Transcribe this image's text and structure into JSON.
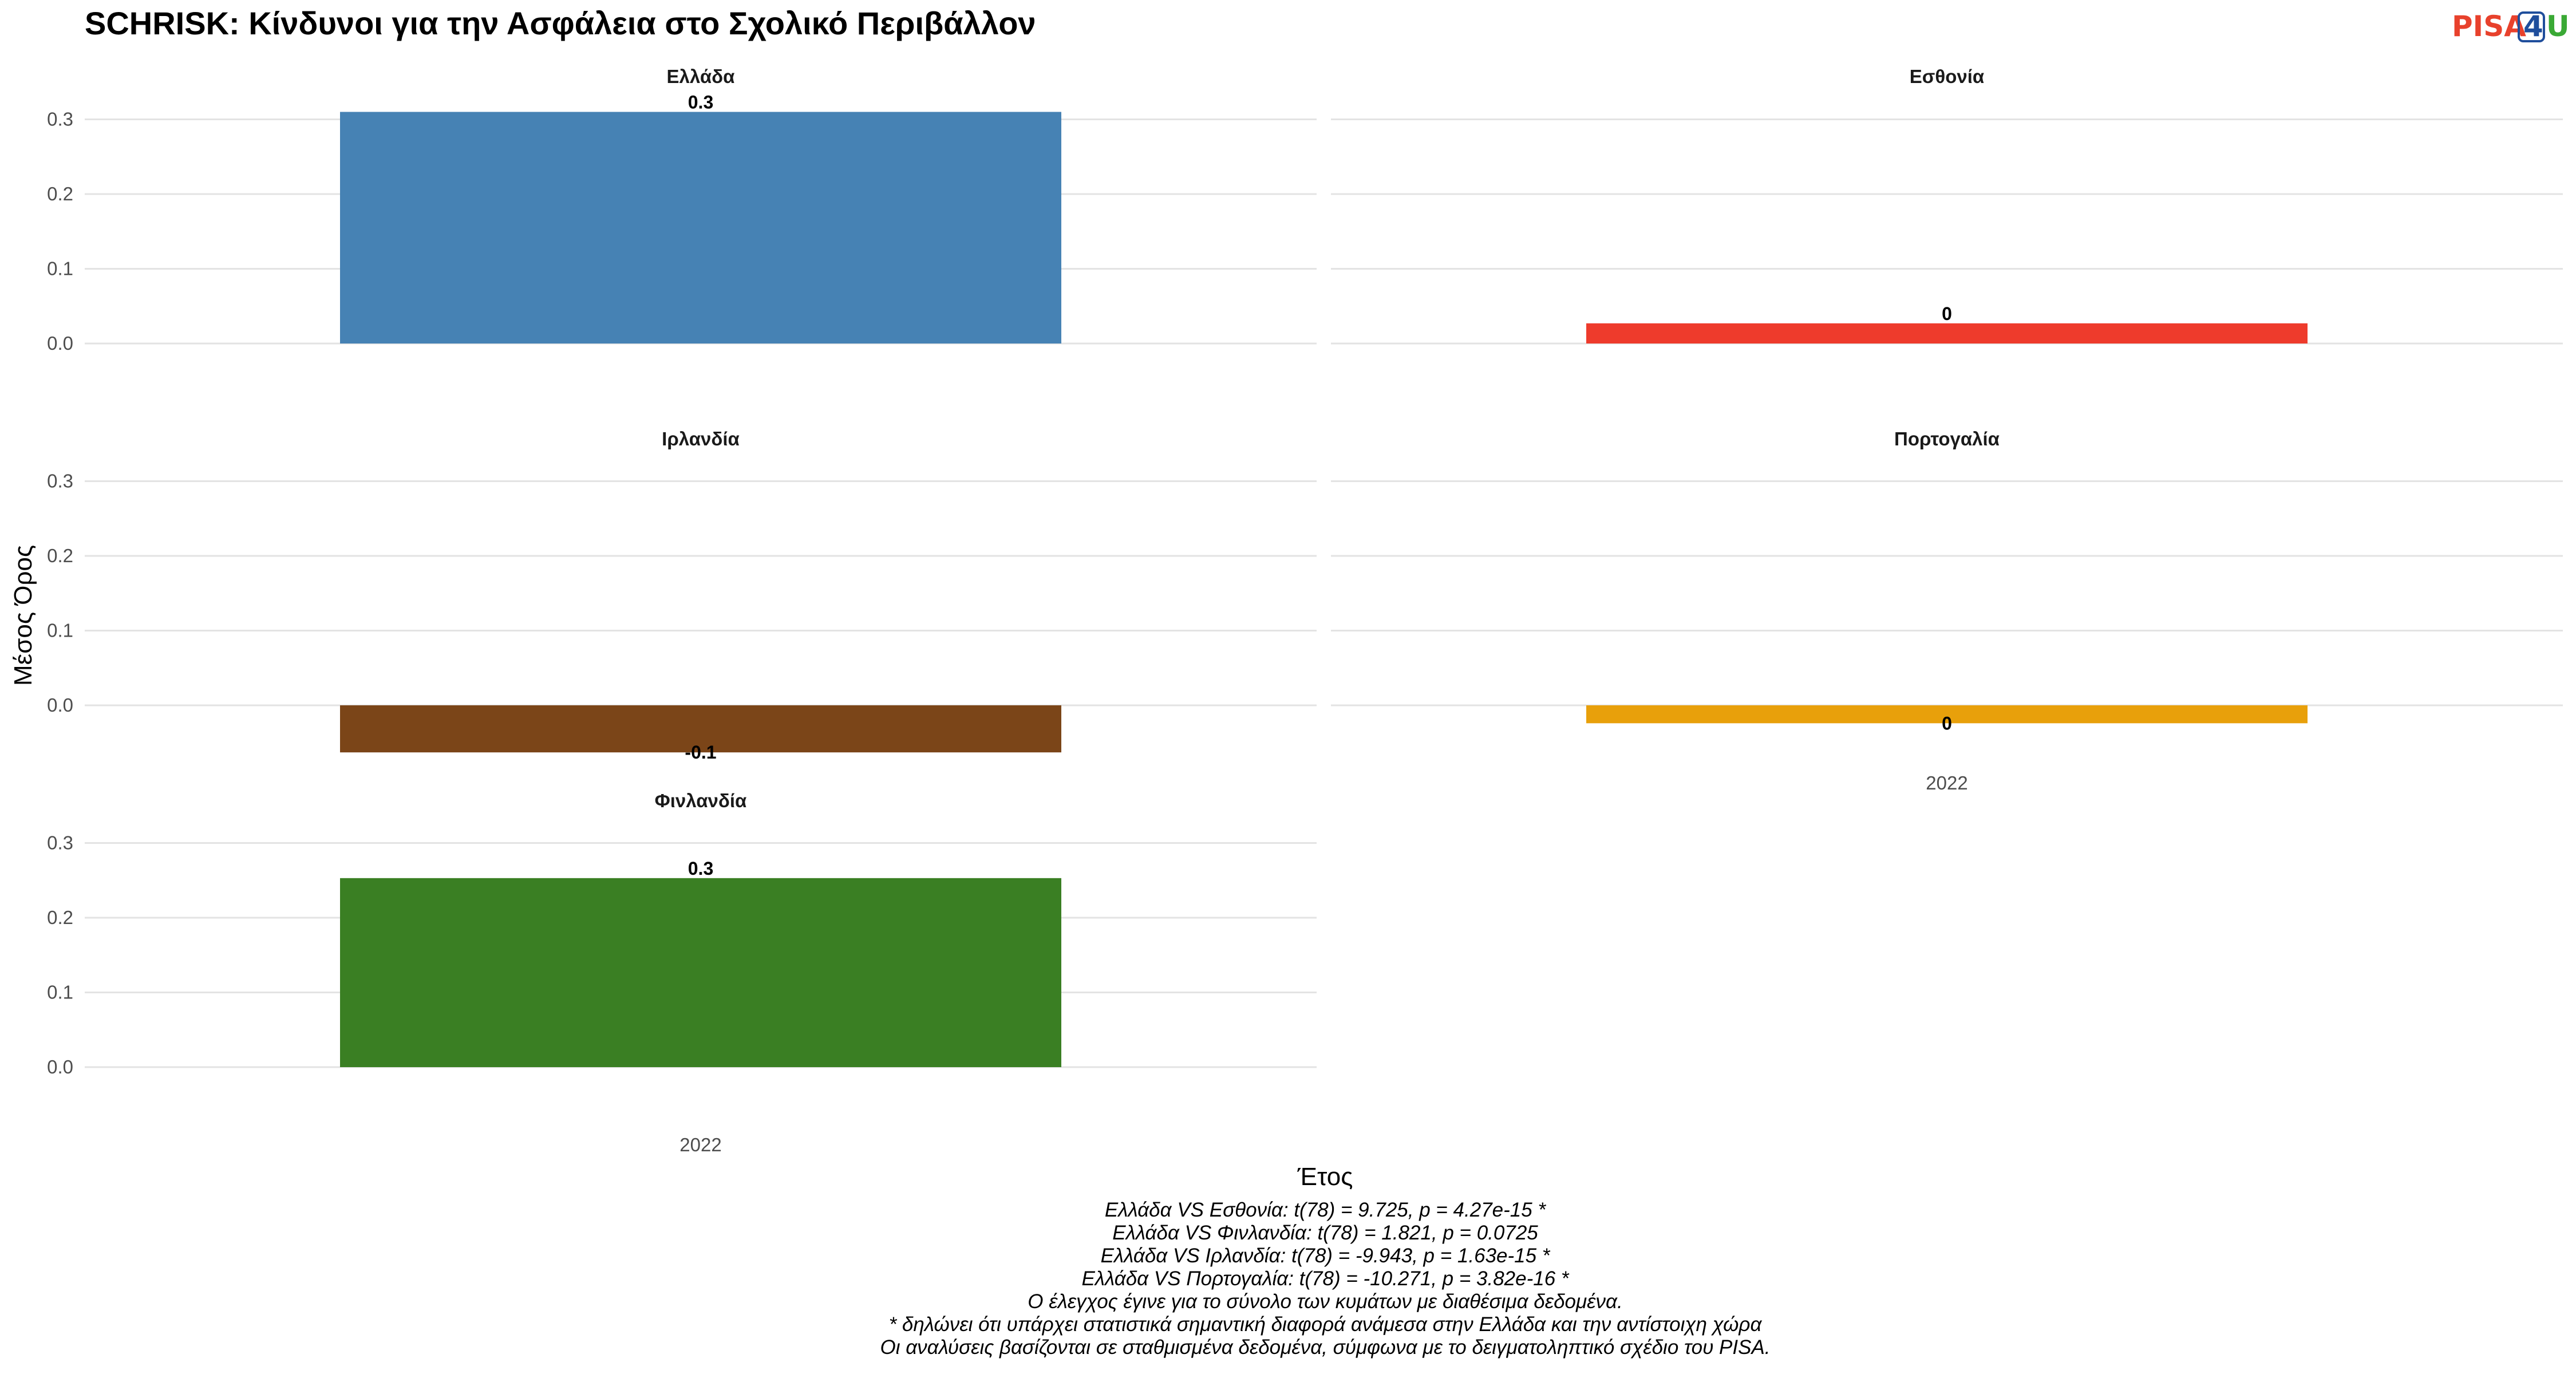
{
  "logo": {
    "part1": "PISA",
    "part2": "4",
    "part3": "U",
    "colors": [
      "#e8412c",
      "#1f4e9c",
      "#3aa935"
    ]
  },
  "chart_data": {
    "type": "bar",
    "title": "SCHRISK: Κίνδυνοι για την Ασφάλεια στο Σχολικό Περιβάλλον",
    "xlabel": "Έτος",
    "ylabel": "Μέσος Όρος",
    "ylim": [
      -0.07,
      0.33
    ],
    "yticks": [
      0.0,
      0.1,
      0.2,
      0.3
    ],
    "ytick_labels": [
      "0.0",
      "0.1",
      "0.2",
      "0.3"
    ],
    "categories": [
      "2022"
    ],
    "grid": true,
    "legend": "none",
    "panels": [
      {
        "name": "Ελλάδα",
        "color": "#4682b4",
        "values": [
          0.31
        ],
        "labels": [
          "0.3"
        ]
      },
      {
        "name": "Εσθονία",
        "color": "#ee3b2c",
        "values": [
          0.027
        ],
        "labels": [
          "0"
        ]
      },
      {
        "name": "Ιρλανδία",
        "color": "#7b4518",
        "values": [
          -0.063
        ],
        "labels": [
          "-0.1"
        ]
      },
      {
        "name": "Πορτογαλία",
        "color": "#e8a00b",
        "values": [
          -0.024
        ],
        "labels": [
          "0"
        ]
      },
      {
        "name": "Φινλανδία",
        "color": "#3a7f23",
        "values": [
          0.253
        ],
        "labels": [
          "0.3"
        ]
      }
    ]
  },
  "caption_lines": [
    "Ελλάδα VS Εσθονία: t(78) = 9.725, p = 4.27e-15 *",
    "Ελλάδα VS Φινλανδία: t(78) = 1.821, p = 0.0725",
    "Ελλάδα VS Ιρλανδία: t(78) = -9.943, p = 1.63e-15 *",
    "Ελλάδα VS Πορτογαλία: t(78) = -10.271, p = 3.82e-16 *",
    "Ο έλεγχος έγινε για το σύνολο των κυμάτων με διαθέσιμα δεδομένα.",
    "* δηλώνει ότι υπάρχει στατιστικά σημαντική διαφορά ανάμεσα στην Ελλάδα και την αντίστοιχη χώρα",
    "Οι αναλύσεις βασίζονται σε σταθμισμένα δεδομένα, σύμφωνα με το δειγματοληπτικό σχέδιο του PISA."
  ]
}
